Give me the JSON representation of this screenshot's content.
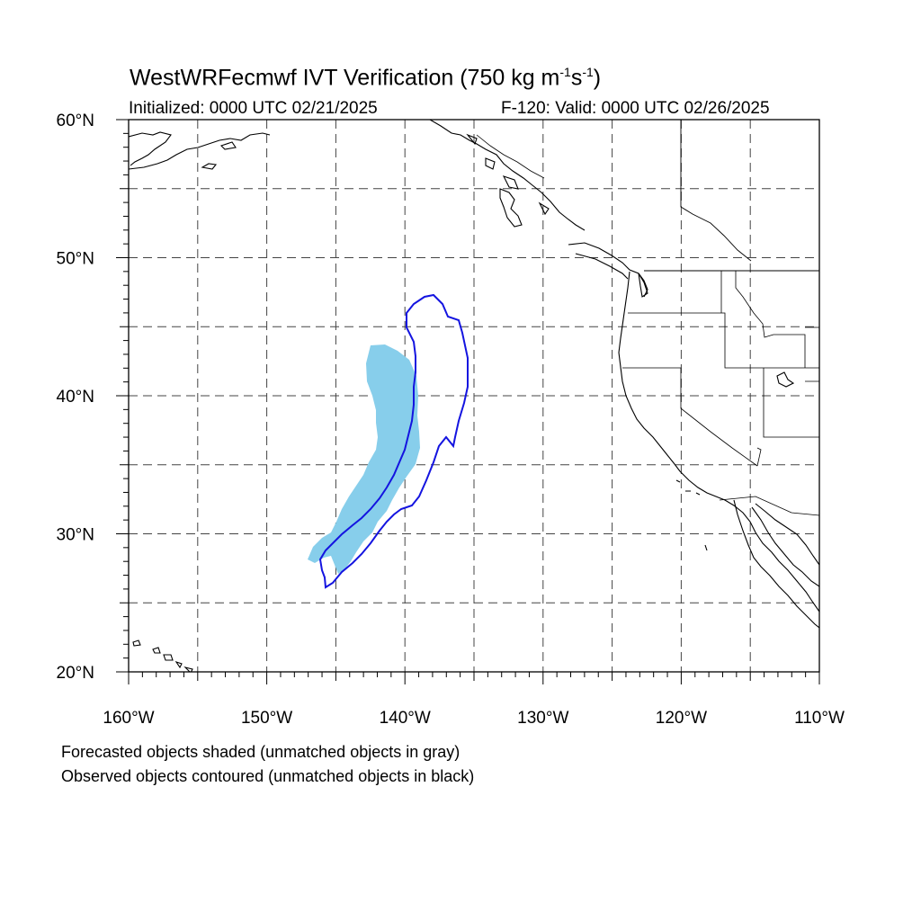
{
  "title": {
    "prefix": "WestWRFecmwf IVT Verification (750 kg m",
    "sup1": "-1",
    "mid": "s",
    "sup2": "-1",
    "suffix": ")"
  },
  "initialized": "Initialized: 0000 UTC 02/21/2025",
  "valid": "F-120: Valid: 0000 UTC 02/26/2025",
  "notes": [
    "Forecasted objects shaded (unmatched objects in gray)",
    "Observed objects contoured (unmatched objects in black)"
  ],
  "map": {
    "lon_range": [
      -160,
      -110
    ],
    "lat_range": [
      20,
      60
    ],
    "lat_ticks": [
      {
        "lat": 60,
        "label": "60°N"
      },
      {
        "lat": 50,
        "label": "50°N"
      },
      {
        "lat": 40,
        "label": "40°N"
      },
      {
        "lat": 30,
        "label": "30°N"
      },
      {
        "lat": 20,
        "label": "20°N"
      }
    ],
    "lon_ticks": [
      {
        "lon": -160,
        "label": "160°W"
      },
      {
        "lon": -150,
        "label": "150°W"
      },
      {
        "lon": -140,
        "label": "140°W"
      },
      {
        "lon": -130,
        "label": "130°W"
      },
      {
        "lon": -120,
        "label": "120°W"
      },
      {
        "lon": -110,
        "label": "110°W"
      }
    ],
    "grid_spacing_deg": 5,
    "colors": {
      "forecast_fill": "#87ceeb",
      "observed_contour": "#1414e0",
      "coast": "#000000",
      "grid": "#444444"
    }
  }
}
